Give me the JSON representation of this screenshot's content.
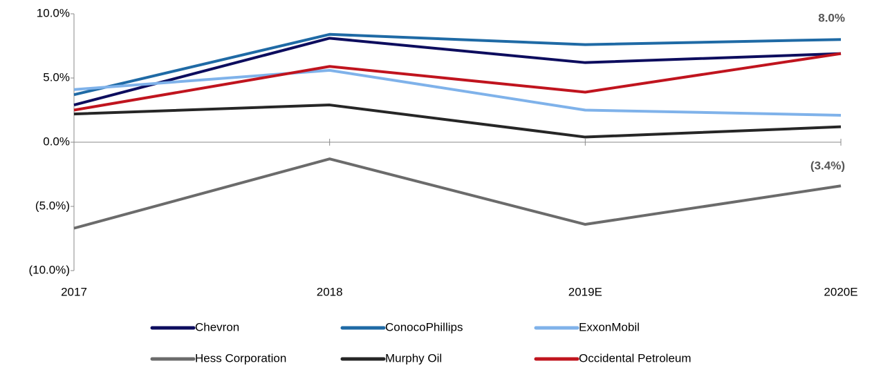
{
  "chart_data": {
    "type": "line",
    "categories": [
      "2017",
      "2018",
      "2019E",
      "2020E"
    ],
    "series": [
      {
        "name": "Chevron",
        "color": "#0d0d5e",
        "values": [
          2.9,
          8.1,
          6.2,
          6.9
        ]
      },
      {
        "name": "ConocoPhillips",
        "color": "#1f6aa5",
        "values": [
          3.7,
          8.4,
          7.6,
          8.0
        ],
        "value_labels": [
          null,
          null,
          null,
          "8.0%"
        ]
      },
      {
        "name": "ExxonMobil",
        "color": "#7fb2ea",
        "values": [
          4.1,
          5.6,
          2.5,
          2.1
        ]
      },
      {
        "name": "Hess Corporation",
        "color": "#6b6b6b",
        "values": [
          -6.7,
          -1.3,
          -6.4,
          -3.4
        ],
        "value_labels": [
          null,
          null,
          null,
          "(3.4%)"
        ]
      },
      {
        "name": "Murphy Oil",
        "color": "#262626",
        "values": [
          2.2,
          2.9,
          0.4,
          1.2
        ]
      },
      {
        "name": "Occidental Petroleum",
        "color": "#c0141e",
        "values": [
          2.5,
          5.9,
          3.9,
          6.9
        ]
      }
    ],
    "ylim": [
      -10,
      10
    ],
    "yticks": [
      {
        "value": -10,
        "label": "(10.0%)"
      },
      {
        "value": -5,
        "label": "(5.0%)"
      },
      {
        "value": 0,
        "label": "0.0%"
      },
      {
        "value": 5,
        "label": "5.0%"
      },
      {
        "value": 10,
        "label": "10.0%"
      }
    ],
    "legend": "bottom"
  }
}
